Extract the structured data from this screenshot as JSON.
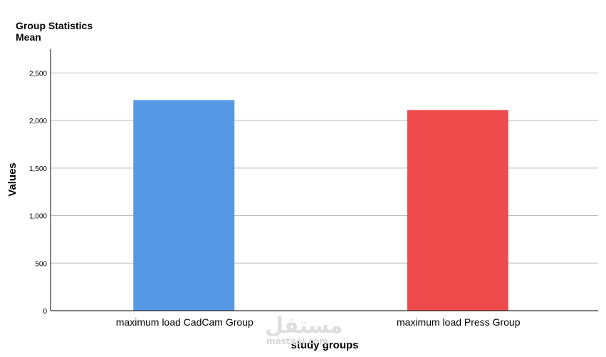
{
  "chart_data": {
    "type": "bar",
    "title": "Group Statistics",
    "subtitle": "Mean",
    "xlabel": "study groups",
    "ylabel": "Values",
    "categories": [
      "maximum load CadCam Group",
      "maximum load Press Group"
    ],
    "values": [
      2215,
      2110
    ],
    "colors": [
      "#5599e6",
      "#ee4b4d"
    ],
    "ylim": [
      0,
      2750
    ],
    "yticks": [
      0,
      500,
      1000,
      1500,
      2000,
      2500
    ],
    "ytick_labels": [
      "0",
      "500",
      "1,000",
      "1,500",
      "2,000",
      "2,500"
    ],
    "grid": true,
    "legend": "none"
  },
  "watermark": {
    "text": "مستقل",
    "subtext": "mostaql.com"
  }
}
